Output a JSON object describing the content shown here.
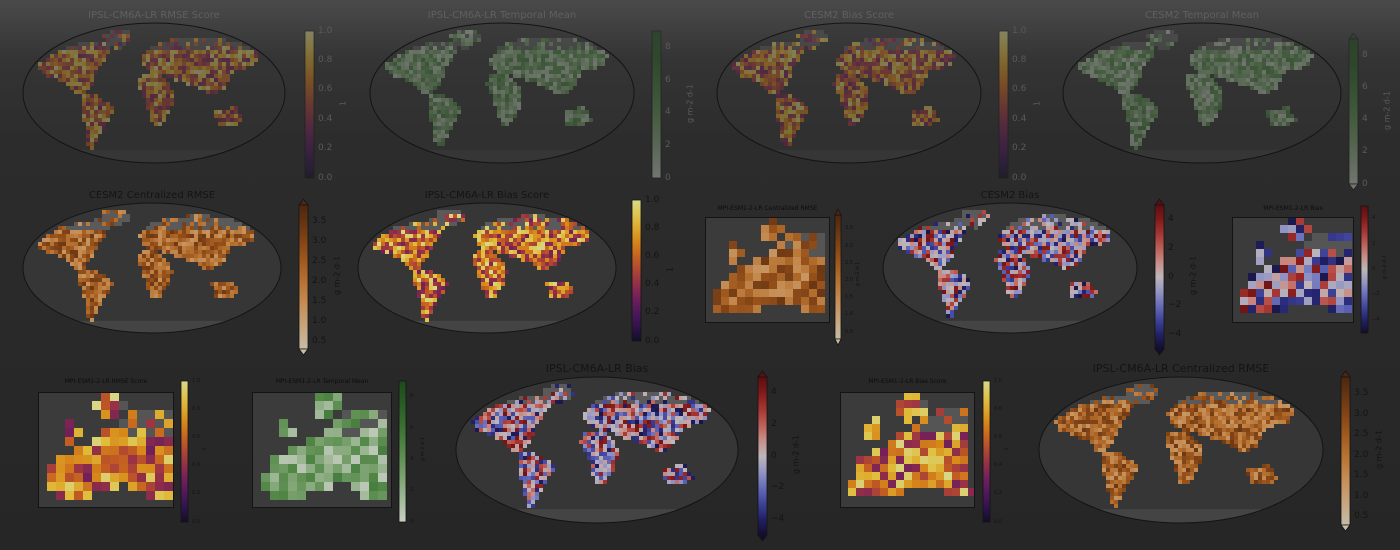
{
  "chart_data": [
    {
      "type": "heatmap",
      "title": "IPSL-CM6A-LR RMSE Score",
      "region": "global",
      "colormap": "inferno",
      "colorbar": {
        "label": "1",
        "ticks": [
          "0.0",
          "0.2",
          "0.4",
          "0.6",
          "0.8",
          "1.0"
        ],
        "range": [
          0,
          1
        ]
      },
      "faded": true
    },
    {
      "type": "heatmap",
      "title": "IPSL-CM6A-LR Temporal Mean",
      "region": "global",
      "colormap": "greens",
      "colorbar": {
        "label": "g m-2 d-1",
        "ticks": [
          "0",
          "2",
          "4",
          "6",
          "8"
        ],
        "range": [
          0,
          9
        ]
      },
      "faded": true
    },
    {
      "type": "heatmap",
      "title": "CESM2 Bias Score",
      "region": "global",
      "colormap": "inferno",
      "colorbar": {
        "label": "1",
        "ticks": [
          "0.0",
          "0.2",
          "0.4",
          "0.6",
          "0.8",
          "1.0"
        ],
        "range": [
          0,
          1
        ]
      },
      "faded": true
    },
    {
      "type": "heatmap",
      "title": "CESM2 Temporal Mean",
      "region": "global",
      "colormap": "greens",
      "colorbar": {
        "label": "g m-2 d-1",
        "ticks": [
          "0",
          "2",
          "4",
          "6",
          "8"
        ],
        "range": [
          0,
          9
        ]
      },
      "faded": true
    },
    {
      "type": "heatmap",
      "title": "CESM2 Centralized RMSE",
      "region": "global",
      "colormap": "oranges",
      "colorbar": {
        "label": "g m-2 d-1",
        "ticks": [
          "0.5",
          "1.0",
          "1.5",
          "2.0",
          "2.5",
          "3.0",
          "3.5"
        ],
        "range": [
          0.3,
          3.9
        ]
      }
    },
    {
      "type": "heatmap",
      "title": "IPSL-CM6A-LR Bias Score",
      "region": "global",
      "colormap": "inferno",
      "colorbar": {
        "label": "1",
        "ticks": [
          "0.0",
          "0.2",
          "0.4",
          "0.6",
          "0.8",
          "1.0"
        ],
        "range": [
          0,
          1
        ]
      }
    },
    {
      "type": "heatmap",
      "title": "MPI-ESM1-2-LR Centralized RMSE",
      "region": "europe",
      "colormap": "oranges",
      "colorbar": {
        "label": "g m-2 d-1",
        "ticks": [
          "0.5",
          "1.0",
          "1.5",
          "2.0",
          "2.5",
          "3.0",
          "3.5"
        ],
        "range": [
          0.3,
          3.9
        ]
      }
    },
    {
      "type": "heatmap",
      "title": "CESM2 Bias",
      "region": "global",
      "colormap": "diverging",
      "colorbar": {
        "label": "g m-2 d-1",
        "ticks": [
          "−4",
          "−2",
          "0",
          "2",
          "4"
        ],
        "range": [
          -5,
          5
        ]
      }
    },
    {
      "type": "heatmap",
      "title": "MPI-ESM1-2-LR Bias",
      "region": "europe",
      "colormap": "diverging",
      "colorbar": {
        "label": "g m-2 d-1",
        "ticks": [
          "−4",
          "−2",
          "0",
          "2",
          "4"
        ],
        "range": [
          -5,
          5
        ]
      }
    },
    {
      "type": "heatmap",
      "title": "MPI-ESM1-2-LR RMSE Score",
      "region": "europe",
      "colormap": "inferno",
      "colorbar": {
        "label": "1",
        "ticks": [
          "0.0",
          "0.2",
          "0.4",
          "0.6",
          "0.8",
          "1.0"
        ],
        "range": [
          0,
          1
        ]
      }
    },
    {
      "type": "heatmap",
      "title": "MPI-ESM1-2-LR Temporal Mean",
      "region": "europe",
      "colormap": "greens",
      "colorbar": {
        "label": "g m-2 d-1",
        "ticks": [
          "0",
          "2",
          "4",
          "6",
          "8"
        ],
        "range": [
          0,
          9
        ]
      }
    },
    {
      "type": "heatmap",
      "title": "IPSL-CM6A-LR Bias",
      "region": "global",
      "colormap": "diverging",
      "colorbar": {
        "label": "g m-2 d-1",
        "ticks": [
          "−4",
          "−2",
          "0",
          "2",
          "4"
        ],
        "range": [
          -5,
          5
        ]
      }
    },
    {
      "type": "heatmap",
      "title": "MPI-ESM1-2-LR Bias Score",
      "region": "europe",
      "colormap": "inferno",
      "colorbar": {
        "label": "1",
        "ticks": [
          "0.0",
          "0.2",
          "0.4",
          "0.6",
          "0.8",
          "1.0"
        ],
        "range": [
          0,
          1
        ]
      }
    },
    {
      "type": "heatmap",
      "title": "IPSL-CM6A-LR Centralized RMSE",
      "region": "global",
      "colormap": "oranges",
      "colorbar": {
        "label": "g m-2 d-1",
        "ticks": [
          "0.5",
          "1.0",
          "1.5",
          "2.0",
          "2.5",
          "3.0",
          "3.5"
        ],
        "range": [
          0.3,
          3.9
        ]
      }
    }
  ]
}
